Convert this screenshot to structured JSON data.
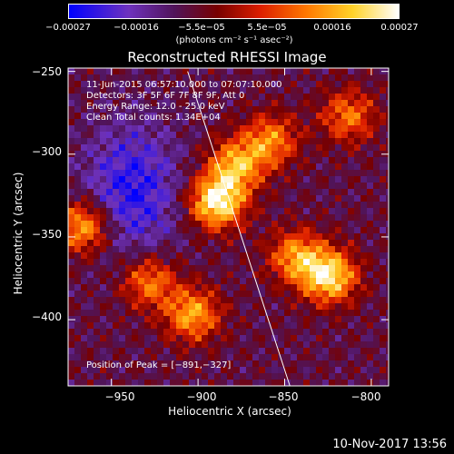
{
  "colorbar": {
    "ticks": [
      "−0.00027",
      "−0.00016",
      "−5.5e−05",
      "5.5e−05",
      "0.00016",
      "0.00027"
    ],
    "unit": "(photons cm⁻² s⁻¹ asec⁻²)"
  },
  "chart_data": {
    "type": "heatmap",
    "title": "Reconstructed RHESSI Image",
    "xlabel": "Heliocentric X (arcsec)",
    "ylabel": "Heliocentric Y (arcsec)",
    "xlim": [
      -975,
      -790
    ],
    "ylim": [
      -440,
      -248
    ],
    "x_ticks": [
      -950,
      -900,
      -850,
      -800
    ],
    "y_ticks": [
      -250,
      -300,
      -350,
      -400
    ],
    "x_tick_labels": [
      "−950",
      "−900",
      "−850",
      "−800"
    ],
    "y_tick_labels": [
      "−250",
      "−300",
      "−350",
      "−400"
    ],
    "colorbar_range": [
      -0.00027,
      0.00027
    ],
    "peak": [
      -891,
      -327
    ],
    "hot_spots": [
      {
        "x": -891,
        "y": -327,
        "level": 1.0
      },
      {
        "x": -826,
        "y": -372,
        "level": 0.9
      },
      {
        "x": -968,
        "y": -342,
        "level": 0.75
      },
      {
        "x": -880,
        "y": -305,
        "level": 0.7
      },
      {
        "x": -905,
        "y": -395,
        "level": 0.7
      },
      {
        "x": -845,
        "y": -360,
        "level": 0.65
      },
      {
        "x": -860,
        "y": -290,
        "level": 0.6
      },
      {
        "x": -930,
        "y": -375,
        "level": 0.6
      },
      {
        "x": -815,
        "y": -275,
        "level": 0.55
      }
    ],
    "limb_line": [
      [
        -906,
        -250
      ],
      [
        -847,
        -440
      ]
    ],
    "annotations": [
      "11-Jun-2015 06:57:10.000 to 07:07:10.000",
      "Detectors: 3F 5F 6F 7F 8F 9F, Att 0",
      "Energy Range: 12.0 - 25.0 keV",
      "Clean    Total counts: 1.34E+04",
      "Position of Peak = [−891,−327]"
    ]
  },
  "timestamp": "10-Nov-2017 13:56",
  "colors": {
    "cold": "#0000ff",
    "hot": "#ffffff",
    "mid": "#ff8000"
  }
}
